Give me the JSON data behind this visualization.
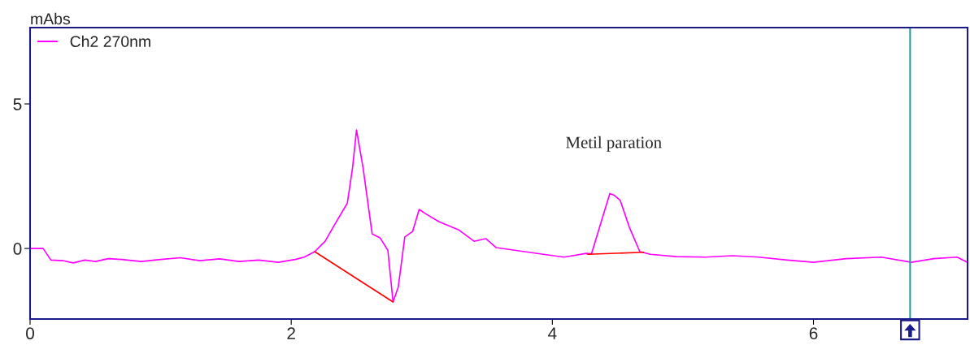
{
  "chart_data": {
    "type": "line",
    "ylabel": "mAbs",
    "xlim": [
      0,
      7.18
    ],
    "ylim": [
      -2.44,
      7.64
    ],
    "xticks": [
      0,
      2,
      4,
      6
    ],
    "yticks": [
      0,
      5
    ],
    "grid": false,
    "legend": "top left",
    "marker": "none",
    "line_style": "solid",
    "series": [
      {
        "name": "Ch2 270nm",
        "color": "#ff00ff",
        "x": [
          0,
          0.1,
          0.16,
          0.25,
          0.33,
          0.42,
          0.5,
          0.6,
          0.7,
          0.85,
          1.0,
          1.15,
          1.3,
          1.45,
          1.6,
          1.75,
          1.9,
          2.03,
          2.1,
          2.18,
          2.26,
          2.32,
          2.43,
          2.47,
          2.5,
          2.55,
          2.62,
          2.68,
          2.74,
          2.78,
          2.82,
          2.87,
          2.93,
          2.98,
          3.03,
          3.13,
          3.28,
          3.4,
          3.49,
          3.57,
          3.71,
          3.93,
          4.09,
          4.26,
          4.3,
          4.44,
          4.47,
          4.52,
          4.59,
          4.67,
          4.75,
          4.95,
          5.17,
          5.38,
          5.58,
          5.8,
          6.0,
          6.25,
          6.52,
          6.75,
          6.92,
          7.1,
          7.18
        ],
        "values": [
          0,
          0,
          -0.4,
          -0.42,
          -0.5,
          -0.4,
          -0.45,
          -0.35,
          -0.38,
          -0.45,
          -0.38,
          -0.32,
          -0.42,
          -0.36,
          -0.45,
          -0.4,
          -0.48,
          -0.38,
          -0.3,
          -0.11,
          0.25,
          0.73,
          1.57,
          2.8,
          4.1,
          2.8,
          0.5,
          0.37,
          -0.06,
          -1.85,
          -1.33,
          0.4,
          0.59,
          1.35,
          1.2,
          0.93,
          0.65,
          0.25,
          0.34,
          0.03,
          -0.06,
          -0.2,
          -0.3,
          -0.17,
          -0.18,
          1.9,
          1.85,
          1.66,
          0.73,
          -0.11,
          -0.2,
          -0.28,
          -0.3,
          -0.25,
          -0.3,
          -0.4,
          -0.48,
          -0.35,
          -0.3,
          -0.48,
          -0.35,
          -0.3,
          -0.48
        ]
      },
      {
        "color": "#ff0000",
        "x": [
          2.18,
          2.78
        ],
        "values": [
          -0.11,
          -1.85
        ]
      },
      {
        "color": "#ff0000",
        "x": [
          4.27,
          4.7
        ],
        "values": [
          -0.2,
          -0.13
        ]
      }
    ],
    "ref_lines": [
      {
        "axis": "x",
        "value": 6.74,
        "color": "#2a9d9d"
      }
    ],
    "annotations": [
      {
        "text": "Metil paration",
        "x": 4.47,
        "y": 1.9
      }
    ]
  }
}
